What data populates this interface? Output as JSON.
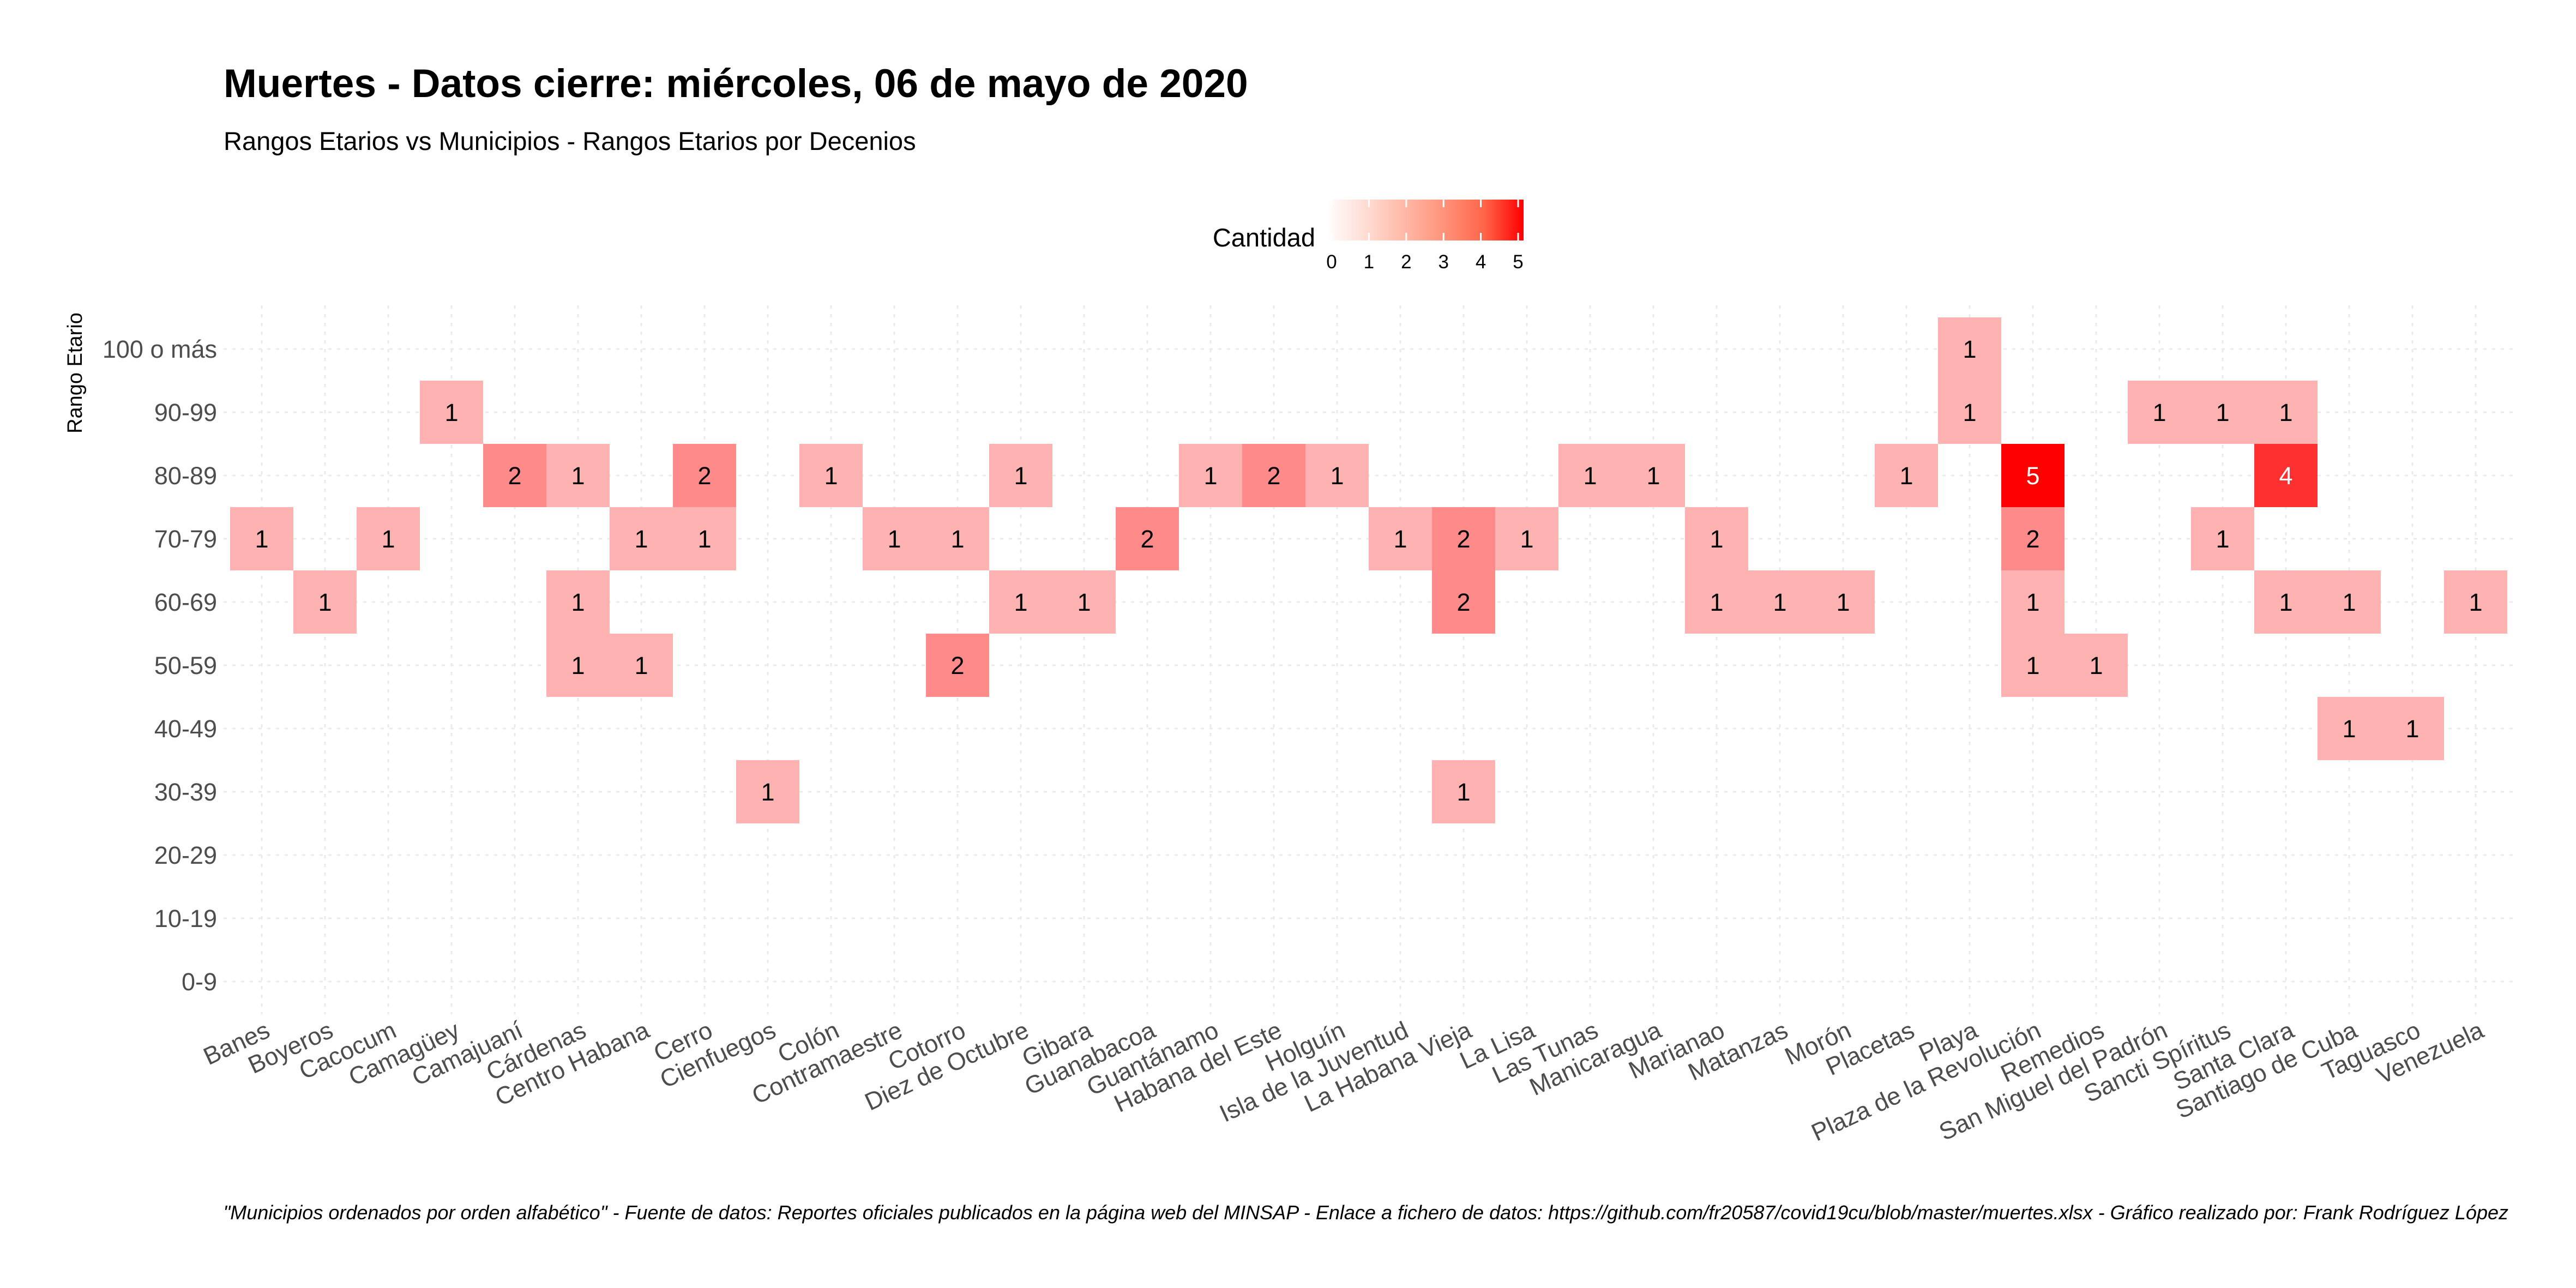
{
  "chart_data": {
    "type": "heatmap",
    "title": "Muertes - Datos cierre: miércoles, 06 de mayo de 2020",
    "subtitle": "Rangos Etarios vs Municipios - Rangos Etarios por Decenios",
    "ylabel": "Rango Etario",
    "xlabel": "",
    "caption": "\"Municipios ordenados por orden alfabético\" - Fuente de datos: Reportes oficiales publicados en la página web del MINSAP - Enlace a fichero de datos: https://github.com/fr20587/covid19cu/blob/master/muertes.xlsx - Gráfico realizado por: Frank Rodríguez López",
    "legend": {
      "title": "Cantidad",
      "position": "top",
      "ticks": [
        "0",
        "1",
        "2",
        "3",
        "4",
        "5"
      ],
      "range": [
        0,
        5
      ],
      "color_low": "#ffffff",
      "color_high": "#ff0000"
    },
    "x_categories": [
      "Banes",
      "Boyeros",
      "Cacocum",
      "Camagüey",
      "Camajuaní",
      "Cárdenas",
      "Centro Habana",
      "Cerro",
      "Cienfuegos",
      "Colón",
      "Contramaestre",
      "Cotorro",
      "Diez de Octubre",
      "Gibara",
      "Guanabacoa",
      "Guantánamo",
      "Habana del Este",
      "Holguín",
      "Isla de la Juventud",
      "La Habana Vieja",
      "La Lisa",
      "Las Tunas",
      "Manicaragua",
      "Marianao",
      "Matanzas",
      "Morón",
      "Placetas",
      "Playa",
      "Plaza de la Revolución",
      "Remedios",
      "San Miguel del Padrón",
      "Sancti Spíritus",
      "Santa Clara",
      "Santiago de Cuba",
      "Taguasco",
      "Venezuela"
    ],
    "y_categories": [
      "0-9",
      "10-19",
      "20-29",
      "30-39",
      "40-49",
      "50-59",
      "60-69",
      "70-79",
      "80-89",
      "90-99",
      "100 o más"
    ],
    "cells": [
      {
        "x": "Banes",
        "y": "70-79",
        "value": 1
      },
      {
        "x": "Boyeros",
        "y": "60-69",
        "value": 1
      },
      {
        "x": "Cacocum",
        "y": "70-79",
        "value": 1
      },
      {
        "x": "Camagüey",
        "y": "90-99",
        "value": 1
      },
      {
        "x": "Camajuaní",
        "y": "80-89",
        "value": 2
      },
      {
        "x": "Cárdenas",
        "y": "80-89",
        "value": 1
      },
      {
        "x": "Cárdenas",
        "y": "60-69",
        "value": 1
      },
      {
        "x": "Cárdenas",
        "y": "50-59",
        "value": 1
      },
      {
        "x": "Centro Habana",
        "y": "70-79",
        "value": 1
      },
      {
        "x": "Centro Habana",
        "y": "50-59",
        "value": 1
      },
      {
        "x": "Cerro",
        "y": "80-89",
        "value": 2
      },
      {
        "x": "Cerro",
        "y": "70-79",
        "value": 1
      },
      {
        "x": "Cienfuegos",
        "y": "30-39",
        "value": 1
      },
      {
        "x": "Colón",
        "y": "80-89",
        "value": 1
      },
      {
        "x": "Contramaestre",
        "y": "70-79",
        "value": 1
      },
      {
        "x": "Cotorro",
        "y": "70-79",
        "value": 1
      },
      {
        "x": "Cotorro",
        "y": "50-59",
        "value": 2
      },
      {
        "x": "Diez de Octubre",
        "y": "80-89",
        "value": 1
      },
      {
        "x": "Diez de Octubre",
        "y": "60-69",
        "value": 1
      },
      {
        "x": "Gibara",
        "y": "60-69",
        "value": 1
      },
      {
        "x": "Guanabacoa",
        "y": "70-79",
        "value": 2
      },
      {
        "x": "Guantánamo",
        "y": "80-89",
        "value": 1
      },
      {
        "x": "Habana del Este",
        "y": "80-89",
        "value": 2
      },
      {
        "x": "Holguín",
        "y": "80-89",
        "value": 1
      },
      {
        "x": "Isla de la Juventud",
        "y": "70-79",
        "value": 1
      },
      {
        "x": "La Habana Vieja",
        "y": "70-79",
        "value": 2
      },
      {
        "x": "La Habana Vieja",
        "y": "60-69",
        "value": 2
      },
      {
        "x": "La Habana Vieja",
        "y": "30-39",
        "value": 1
      },
      {
        "x": "La Lisa",
        "y": "70-79",
        "value": 1
      },
      {
        "x": "Las Tunas",
        "y": "80-89",
        "value": 1
      },
      {
        "x": "Manicaragua",
        "y": "80-89",
        "value": 1
      },
      {
        "x": "Marianao",
        "y": "70-79",
        "value": 1
      },
      {
        "x": "Marianao",
        "y": "60-69",
        "value": 1
      },
      {
        "x": "Matanzas",
        "y": "60-69",
        "value": 1
      },
      {
        "x": "Morón",
        "y": "60-69",
        "value": 1
      },
      {
        "x": "Placetas",
        "y": "80-89",
        "value": 1
      },
      {
        "x": "Playa",
        "y": "100 o más",
        "value": 1
      },
      {
        "x": "Playa",
        "y": "90-99",
        "value": 1
      },
      {
        "x": "Plaza de la Revolución",
        "y": "80-89",
        "value": 5
      },
      {
        "x": "Plaza de la Revolución",
        "y": "70-79",
        "value": 2
      },
      {
        "x": "Plaza de la Revolución",
        "y": "60-69",
        "value": 1
      },
      {
        "x": "Plaza de la Revolución",
        "y": "50-59",
        "value": 1
      },
      {
        "x": "Remedios",
        "y": "50-59",
        "value": 1
      },
      {
        "x": "San Miguel del Padrón",
        "y": "90-99",
        "value": 1
      },
      {
        "x": "Sancti Spíritus",
        "y": "90-99",
        "value": 1
      },
      {
        "x": "Sancti Spíritus",
        "y": "70-79",
        "value": 1
      },
      {
        "x": "Santa Clara",
        "y": "90-99",
        "value": 1
      },
      {
        "x": "Santa Clara",
        "y": "80-89",
        "value": 4
      },
      {
        "x": "Santa Clara",
        "y": "60-69",
        "value": 1
      },
      {
        "x": "Santiago de Cuba",
        "y": "60-69",
        "value": 1
      },
      {
        "x": "Santiago de Cuba",
        "y": "40-49",
        "value": 1
      },
      {
        "x": "Taguasco",
        "y": "40-49",
        "value": 1
      },
      {
        "x": "Venezuela",
        "y": "60-69",
        "value": 1
      }
    ],
    "grid": true
  }
}
